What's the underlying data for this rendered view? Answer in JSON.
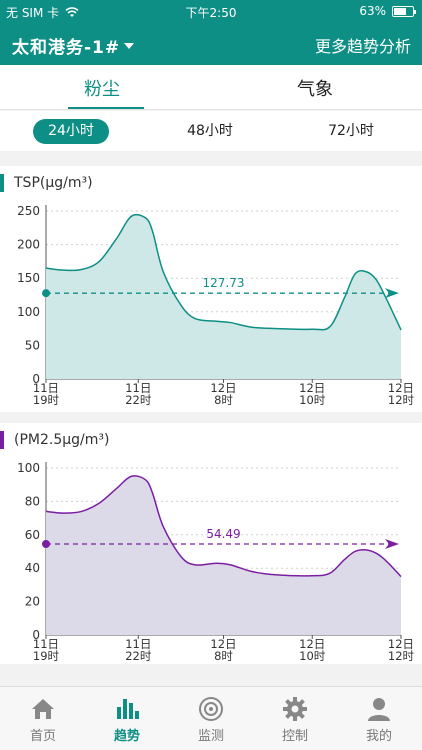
{
  "status": {
    "carrier": "无 SIM 卡",
    "time": "下午2:50",
    "battery": "63%"
  },
  "nav": {
    "station": "太和港务-1#",
    "more": "更多趋势分析"
  },
  "tabs": [
    {
      "label": "粉尘",
      "active": true
    },
    {
      "label": "气象",
      "active": false
    }
  ],
  "ranges": [
    {
      "label": "24小时",
      "active": true
    },
    {
      "label": "48小时",
      "active": false
    },
    {
      "label": "72小时",
      "active": false
    }
  ],
  "charts": {
    "tsp": {
      "title": "TSP(μg/m³)",
      "color": "#0e8f85",
      "fill": "#cde8e6",
      "ylim": [
        0,
        250
      ],
      "yticks": [
        "0",
        "50",
        "100",
        "150",
        "200",
        "250"
      ],
      "avg_label": "127.73",
      "avg_value": 127.73
    },
    "pm25": {
      "title": "(PM2.5μg/m³)",
      "color": "#7b1fa2",
      "fill": "#dcd9e8",
      "ylim": [
        0,
        100
      ],
      "yticks": [
        "0",
        "20",
        "40",
        "60",
        "80",
        "100"
      ],
      "avg_label": "54.49",
      "avg_value": 54.49
    }
  },
  "chart_data": [
    {
      "type": "area",
      "title": "TSP(μg/m³)",
      "x_tick_labels": [
        [
          "11日",
          "19时"
        ],
        [
          "11日",
          "22时"
        ],
        [
          "12日",
          "8时"
        ],
        [
          "12日",
          "10时"
        ],
        [
          "12日",
          "12时"
        ]
      ],
      "x": [
        0,
        0.05,
        0.1,
        0.15,
        0.2,
        0.24,
        0.28,
        0.3,
        0.33,
        0.38,
        0.42,
        0.48,
        0.52,
        0.58,
        0.65,
        0.75,
        0.8,
        0.84,
        0.87,
        0.9,
        0.93,
        0.96,
        1.0
      ],
      "series": [
        {
          "values": [
            165,
            162,
            163,
            175,
            210,
            242,
            240,
            220,
            160,
            110,
            90,
            86,
            84,
            77,
            75,
            74,
            78,
            120,
            156,
            160,
            148,
            118,
            73
          ]
        }
      ],
      "average": 127.73,
      "ylim": [
        0,
        250
      ]
    },
    {
      "type": "area",
      "title": "(PM2.5μg/m³)",
      "x_tick_labels": [
        [
          "11日",
          "19时"
        ],
        [
          "11日",
          "22时"
        ],
        [
          "12日",
          "8时"
        ],
        [
          "12日",
          "10时"
        ],
        [
          "12日",
          "12时"
        ]
      ],
      "x": [
        0,
        0.05,
        0.1,
        0.15,
        0.2,
        0.24,
        0.28,
        0.3,
        0.33,
        0.38,
        0.42,
        0.48,
        0.52,
        0.58,
        0.65,
        0.75,
        0.8,
        0.84,
        0.87,
        0.9,
        0.93,
        0.96,
        1.0
      ],
      "series": [
        {
          "values": [
            74,
            73,
            74,
            79,
            88,
            95,
            93,
            85,
            65,
            47,
            42,
            43,
            42,
            38,
            36,
            35.5,
            37,
            45,
            50,
            51,
            49,
            44,
            35
          ]
        }
      ],
      "average": 54.49,
      "ylim": [
        0,
        100
      ]
    }
  ],
  "bottom_tabs": [
    {
      "label": "首页",
      "icon": "home-icon",
      "active": false
    },
    {
      "label": "趋势",
      "icon": "trend-icon",
      "active": true
    },
    {
      "label": "监测",
      "icon": "monitor-icon",
      "active": false
    },
    {
      "label": "控制",
      "icon": "gear-icon",
      "active": false
    },
    {
      "label": "我的",
      "icon": "person-icon",
      "active": false
    }
  ]
}
